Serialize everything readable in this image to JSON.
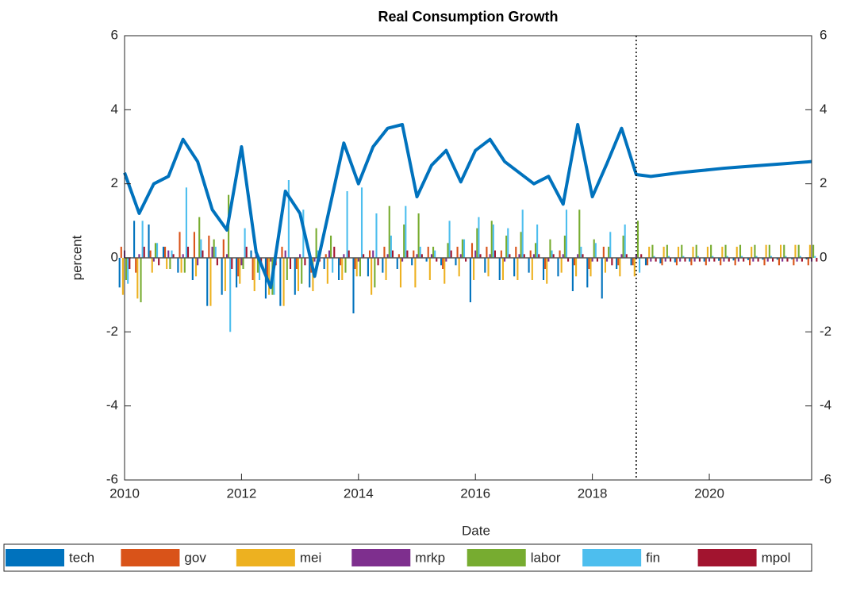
{
  "chart_data": {
    "type": "bar",
    "title": "Real Consumption Growth",
    "xlabel": "Date",
    "ylabel": "percent",
    "x": [
      2010,
      2010.25,
      2010.5,
      2010.75,
      2011,
      2011.25,
      2011.5,
      2011.75,
      2012,
      2012.25,
      2012.5,
      2012.75,
      2013,
      2013.25,
      2013.5,
      2013.75,
      2014,
      2014.25,
      2014.5,
      2014.75,
      2015,
      2015.25,
      2015.5,
      2015.75,
      2016,
      2016.25,
      2016.5,
      2016.75,
      2017,
      2017.25,
      2017.5,
      2017.75,
      2018,
      2018.25,
      2018.5,
      2018.75,
      2019,
      2019.25,
      2019.5,
      2019.75,
      2020,
      2020.25,
      2020.5,
      2020.75,
      2021,
      2021.25,
      2021.5,
      2021.75
    ],
    "xlim": [
      2010,
      2021.75
    ],
    "xticks": [
      2010,
      2012,
      2014,
      2016,
      2018,
      2020
    ],
    "ylim": [
      -6,
      6
    ],
    "yticks": [
      -6,
      -4,
      -2,
      0,
      2,
      4,
      6
    ],
    "y2lim": [
      -6,
      6
    ],
    "y2ticks": [
      -6,
      -4,
      -2,
      0,
      2,
      4,
      6
    ],
    "vline": 2018.75,
    "legend": "bottom",
    "line": {
      "color": "#0072BD",
      "values": [
        2.3,
        1.2,
        2.0,
        2.2,
        3.2,
        2.6,
        1.3,
        0.75,
        3.0,
        0.15,
        -0.8,
        1.8,
        1.2,
        -0.5,
        1.3,
        3.1,
        2.0,
        3.0,
        3.5,
        3.6,
        1.65,
        2.5,
        2.9,
        2.05,
        2.9,
        3.2,
        2.6,
        2.3,
        2.0,
        2.2,
        1.45,
        3.6,
        1.65,
        2.55,
        3.5,
        2.25,
        2.2,
        2.25,
        2.3,
        2.34,
        2.38,
        2.42,
        2.45,
        2.48,
        2.51,
        2.54,
        2.57,
        2.6
      ]
    },
    "series": [
      {
        "name": "tech",
        "color": "#0072BD",
        "values": [
          -0.8,
          1.0,
          0.9,
          0.3,
          -0.4,
          -0.6,
          -1.3,
          -1.0,
          -0.8,
          0.2,
          -1.1,
          -1.3,
          -1.0,
          -0.8,
          -0.3,
          -0.6,
          -1.5,
          -0.5,
          -0.4,
          -0.3,
          -0.2,
          -0.1,
          -0.2,
          -0.2,
          -1.2,
          -0.4,
          -0.6,
          -0.5,
          -0.4,
          -0.6,
          -0.5,
          -0.9,
          -0.8,
          -1.1,
          -0.3,
          -0.2,
          -0.2,
          -0.15,
          -0.12,
          -0.1,
          -0.1,
          -0.08,
          -0.07,
          -0.06,
          -0.05,
          -0.05,
          -0.04,
          -0.04
        ]
      },
      {
        "name": "gov",
        "color": "#D95319",
        "values": [
          0.3,
          -0.4,
          0.2,
          0.3,
          0.7,
          0.7,
          0.6,
          0.5,
          -0.5,
          -0.6,
          -0.6,
          0.3,
          -0.3,
          -0.4,
          0.1,
          -0.2,
          -0.3,
          0.2,
          0.3,
          0.1,
          0.2,
          0.3,
          -0.3,
          0.3,
          0.4,
          0.3,
          0.2,
          0.3,
          0.2,
          -0.3,
          0.2,
          -0.2,
          -0.3,
          0.3,
          -0.2,
          -0.2,
          -0.2,
          -0.2,
          -0.2,
          -0.2,
          -0.2,
          -0.2,
          -0.2,
          -0.2,
          -0.2,
          -0.2,
          -0.2,
          -0.2
        ]
      },
      {
        "name": "mei",
        "color": "#EDB120",
        "values": [
          -1.0,
          -1.1,
          -0.4,
          -0.3,
          -0.4,
          -0.5,
          -1.3,
          -0.9,
          -0.7,
          -0.9,
          -1.0,
          -1.3,
          -0.9,
          -0.9,
          -0.7,
          -0.6,
          -0.5,
          -1.0,
          -0.6,
          -0.8,
          -0.8,
          -0.6,
          -0.7,
          -0.5,
          -0.6,
          -0.5,
          -0.6,
          -0.6,
          -0.6,
          -0.7,
          -0.4,
          -0.5,
          -0.5,
          -0.4,
          -0.5,
          -0.5,
          0.3,
          0.3,
          0.3,
          0.3,
          0.3,
          0.3,
          0.3,
          0.3,
          0.35,
          0.35,
          0.35,
          0.35
        ]
      },
      {
        "name": "mrkp",
        "color": "#7E2F8E",
        "values": [
          0.2,
          0.1,
          -0.1,
          0.2,
          0.1,
          -0.2,
          0.3,
          0.1,
          -0.2,
          0.1,
          -0.1,
          0.2,
          0.1,
          -0.1,
          0.2,
          0.1,
          -0.1,
          0.2,
          0.1,
          -0.1,
          0.1,
          0.1,
          -0.1,
          0.1,
          0.2,
          0.1,
          -0.1,
          0.1,
          0.1,
          -0.1,
          0.1,
          0.1,
          -0.1,
          -0.1,
          0.1,
          0.1,
          -0.1,
          -0.1,
          -0.1,
          -0.1,
          -0.1,
          -0.1,
          -0.1,
          -0.1,
          -0.1,
          -0.1,
          -0.1,
          -0.1
        ]
      },
      {
        "name": "labor",
        "color": "#77AC30",
        "values": [
          -0.6,
          -1.2,
          0.4,
          -0.3,
          -0.4,
          1.1,
          0.5,
          1.7,
          -0.3,
          -0.4,
          -1.0,
          -0.6,
          -0.7,
          0.8,
          0.6,
          -0.4,
          -0.5,
          -0.8,
          1.4,
          0.9,
          1.2,
          0.3,
          0.4,
          0.5,
          0.8,
          1.0,
          0.6,
          0.7,
          0.4,
          0.5,
          0.6,
          1.3,
          0.5,
          0.3,
          0.6,
          1.0,
          0.35,
          0.35,
          0.35,
          0.35,
          0.35,
          0.35,
          0.35,
          0.35,
          0.35,
          0.35,
          0.35,
          0.35
        ]
      },
      {
        "name": "fin",
        "color": "#4DBEEE",
        "values": [
          -0.7,
          1.0,
          0.4,
          0.2,
          1.9,
          0.5,
          0.3,
          -2.0,
          0.8,
          -0.6,
          -1.0,
          2.1,
          1.3,
          0.2,
          -0.4,
          1.8,
          1.9,
          1.2,
          0.6,
          1.4,
          0.3,
          0.2,
          1.0,
          0.5,
          1.1,
          0.9,
          0.8,
          1.3,
          0.9,
          0.2,
          1.3,
          0.3,
          0.4,
          0.7,
          0.9,
          -0.4,
          0.05,
          0.05,
          0.05,
          0.05,
          0.05,
          0.05,
          0.05,
          0.05,
          0.05,
          0.05,
          0.05,
          0.05
        ]
      },
      {
        "name": "mpol",
        "color": "#A2142F",
        "values": [
          -0.3,
          0.3,
          -0.2,
          0.1,
          0.3,
          0.2,
          -0.2,
          -0.3,
          0.3,
          -0.2,
          -0.2,
          -0.3,
          -0.2,
          -0.1,
          0.3,
          0.2,
          0.1,
          -0.2,
          0.2,
          0.2,
          0.1,
          -0.1,
          0.2,
          -0.1,
          0.1,
          0.2,
          0.1,
          0.1,
          0.1,
          0.1,
          -0.1,
          0.1,
          -0.1,
          -0.2,
          0.1,
          0.1,
          -0.1,
          -0.1,
          -0.1,
          -0.1,
          -0.1,
          -0.1,
          -0.1,
          -0.1,
          -0.1,
          -0.1,
          -0.1,
          -0.1
        ]
      }
    ]
  }
}
